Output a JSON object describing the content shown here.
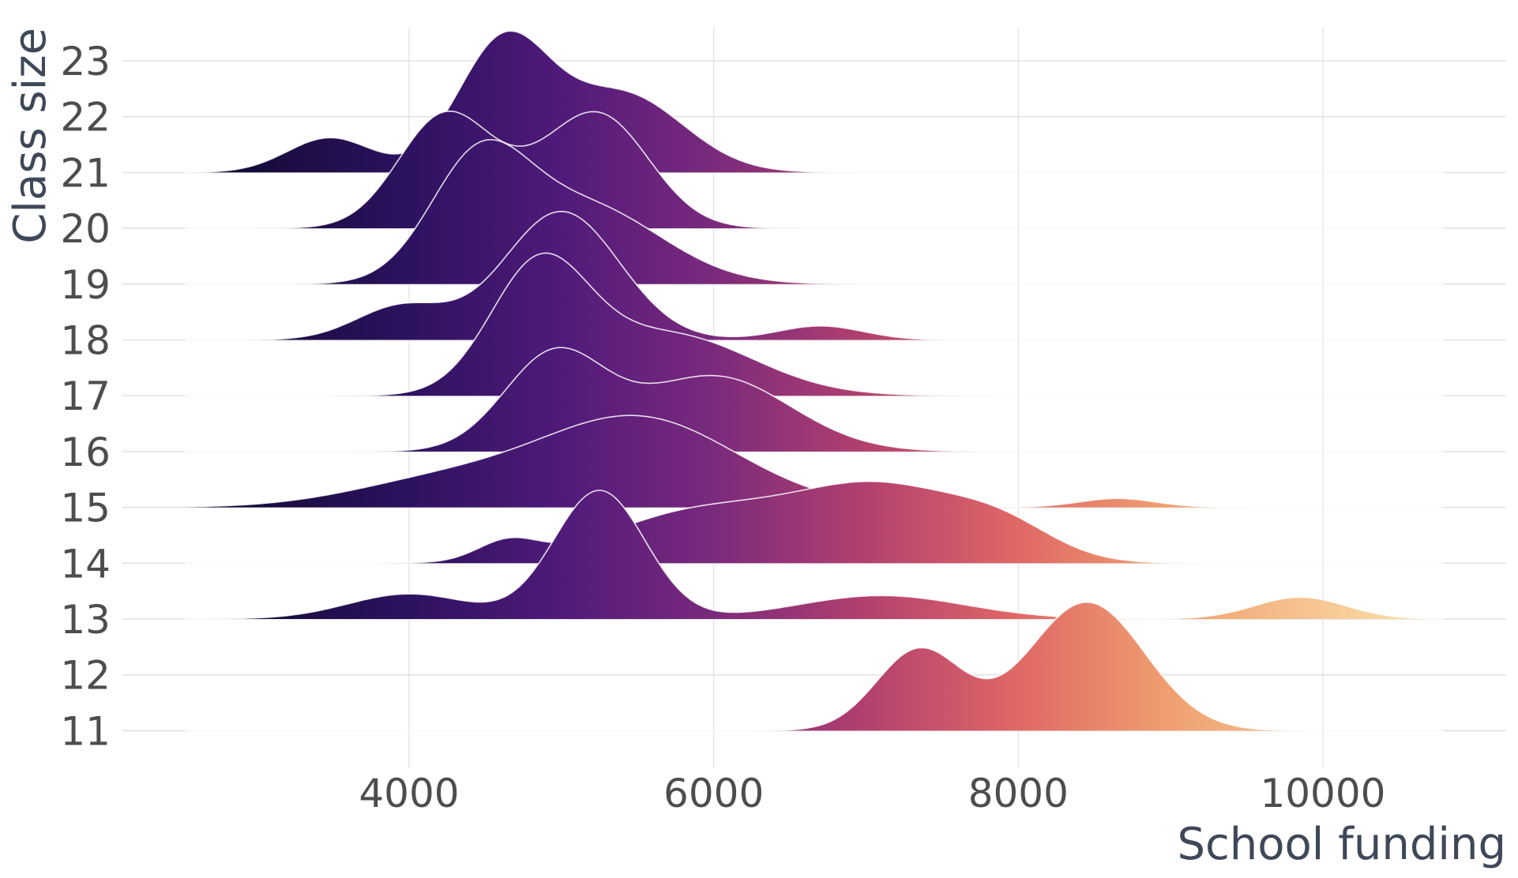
{
  "chart_data": {
    "type": "ridgeline",
    "title": "",
    "xlabel": "School funding",
    "ylabel": "Class size",
    "xlim": [
      2100,
      11200
    ],
    "x_ticks": [
      "4000",
      "6000",
      "8000",
      "10000"
    ],
    "x_tick_values": [
      4000,
      6000,
      8000,
      10000
    ],
    "y_categories": [
      "11",
      "12",
      "13",
      "14",
      "15",
      "16",
      "17",
      "18",
      "19",
      "20",
      "21",
      "22",
      "23"
    ],
    "grid": true,
    "fill": "gradient along x (magma palette)",
    "colors": {
      "low": "#0d0829",
      "c1": "#2d1260",
      "c2": "#501a7a",
      "c3": "#7a2a7c",
      "c4": "#b3406f",
      "c5": "#e06866",
      "c6": "#f0a070",
      "high": "#fbe7b0",
      "outline": "#ffffff",
      "grid": "#e3e3e3"
    },
    "density_range": [
      2530,
      10800
    ],
    "ridges": [
      {
        "category": "21",
        "peaks": [
          [
            3480,
            280,
            0.62
          ],
          [
            4620,
            300,
            2.3
          ],
          [
            5400,
            400,
            1.4
          ]
        ]
      },
      {
        "category": "20",
        "peaks": [
          [
            4220,
            300,
            1.9
          ],
          [
            5260,
            330,
            1.9
          ],
          [
            4740,
            350,
            0.5
          ]
        ]
      },
      {
        "category": "19",
        "peaks": [
          [
            4450,
            320,
            2.0
          ],
          [
            5150,
            500,
            1.4
          ]
        ]
      },
      {
        "category": "18",
        "peaks": [
          [
            5000,
            380,
            2.3
          ],
          [
            3950,
            300,
            0.6
          ],
          [
            6700,
            280,
            0.25
          ]
        ]
      },
      {
        "category": "17",
        "peaks": [
          [
            4850,
            320,
            2.2
          ],
          [
            5700,
            550,
            1.1
          ]
        ]
      },
      {
        "category": "16",
        "peaks": [
          [
            4950,
            330,
            1.7
          ],
          [
            6000,
            500,
            1.35
          ]
        ]
      },
      {
        "category": "15",
        "peaks": [
          [
            5500,
            650,
            1.6
          ],
          [
            4200,
            600,
            0.45
          ],
          [
            8650,
            250,
            0.16
          ]
        ]
      },
      {
        "category": "14",
        "peaks": [
          [
            4650,
            200,
            0.35
          ],
          [
            5900,
            600,
            0.9
          ],
          [
            7100,
            550,
            1.3
          ],
          [
            7900,
            350,
            0.5
          ]
        ]
      },
      {
        "category": "13",
        "peaks": [
          [
            5250,
            300,
            2.3
          ],
          [
            4000,
            400,
            0.45
          ],
          [
            7100,
            550,
            0.42
          ],
          [
            9850,
            300,
            0.39
          ]
        ]
      },
      {
        "category": "11",
        "peaks": [
          [
            7350,
            280,
            1.45
          ],
          [
            8450,
            380,
            2.3
          ]
        ]
      }
    ]
  }
}
